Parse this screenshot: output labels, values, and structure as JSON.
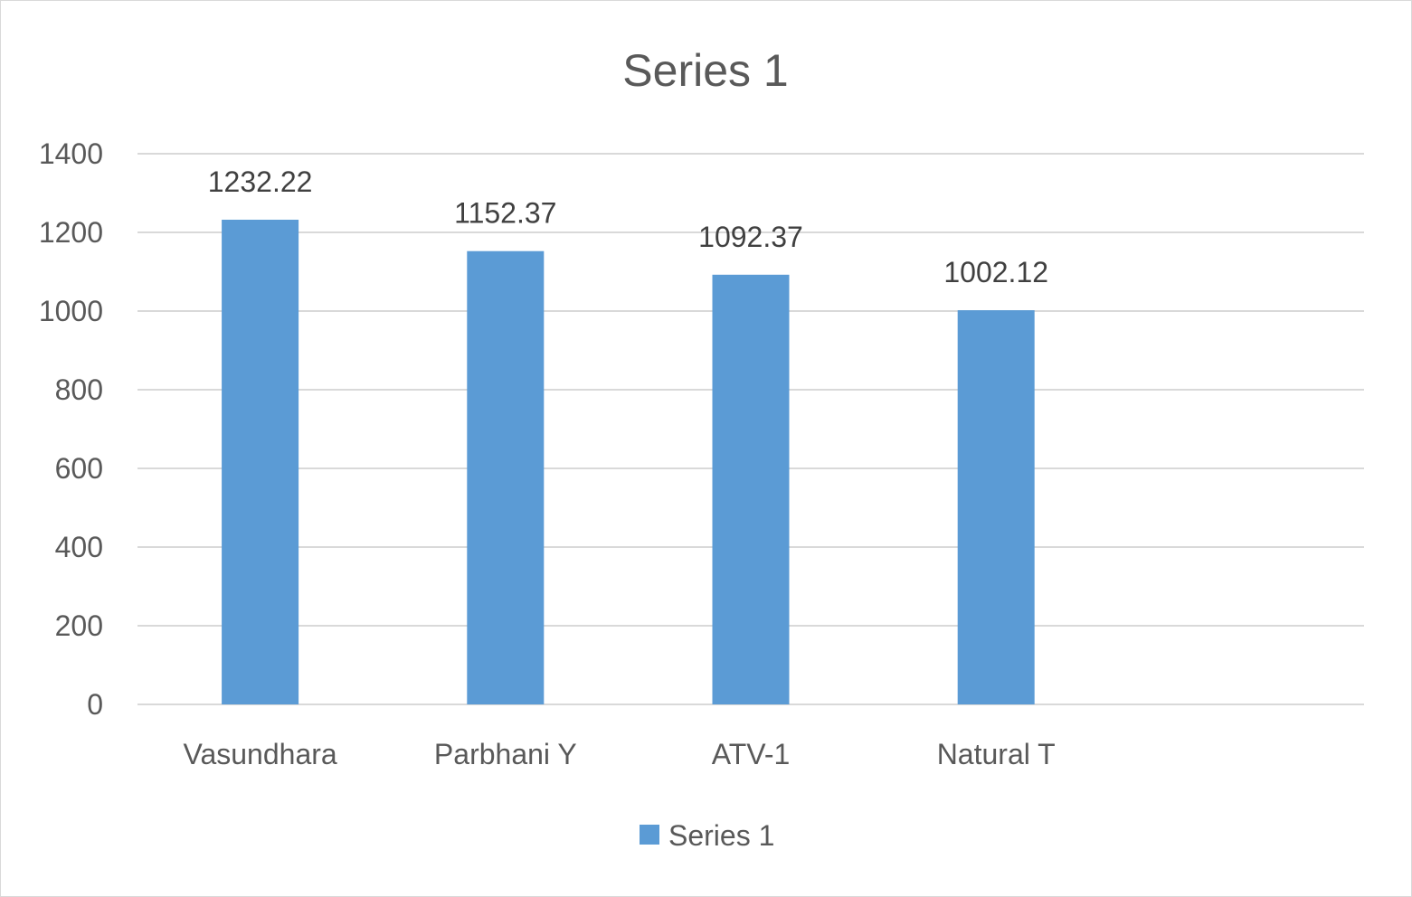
{
  "chart_data": {
    "type": "bar",
    "title": "Series 1",
    "xlabel": "",
    "ylabel": "",
    "categories": [
      "Vasundhara",
      "Parbhani Y",
      "ATV-1",
      "Natural T"
    ],
    "series": [
      {
        "name": "Series 1",
        "values": [
          1232.22,
          1152.37,
          1092.37,
          1002.12
        ],
        "data_labels": [
          "1232.22",
          "1152.37",
          "1092.37",
          "1002.12"
        ],
        "color": "#5b9bd5"
      }
    ],
    "ylim": [
      0,
      1400
    ],
    "yticks": [
      "0",
      "200",
      "400",
      "600",
      "800",
      "1000",
      "1200",
      "1400"
    ],
    "grid": true,
    "grid_color": "#d9d9d9",
    "legend_position": "bottom"
  }
}
